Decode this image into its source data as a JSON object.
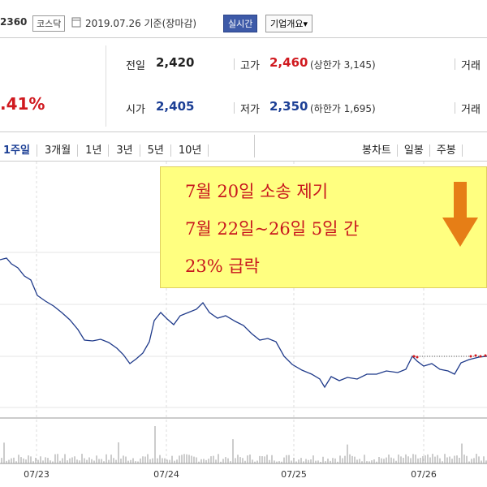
{
  "header": {
    "code": "2360",
    "market": "코스닥",
    "date": "2019.07.26 기준(장마감)",
    "realtime": "실시간",
    "company": "기업개요"
  },
  "summary": {
    "change_rate": ".41%",
    "rows": [
      {
        "label1": "전일",
        "value1": "2,420",
        "label2": "고가",
        "value2": "2,460",
        "limit2": "(상한가 3,145)",
        "label3": "거래"
      },
      {
        "label1": "시가",
        "value1": "2,405",
        "label2": "저가",
        "value2": "2,350",
        "limit2": "(하한가 1,695)",
        "label3": "거래"
      }
    ]
  },
  "tabs": {
    "periods": [
      "1주일",
      "3개월",
      "1년",
      "3년",
      "5년",
      "10년"
    ],
    "views": [
      "봉차트",
      "일봉",
      "주봉"
    ]
  },
  "annotation": {
    "lines": [
      "7월 20일 소송 제기",
      "7월 22일~26일 5일 간",
      "23% 급락"
    ]
  },
  "chart": {
    "x_labels": [
      "07/23",
      "07/24",
      "07/25",
      "07/26"
    ]
  }
}
